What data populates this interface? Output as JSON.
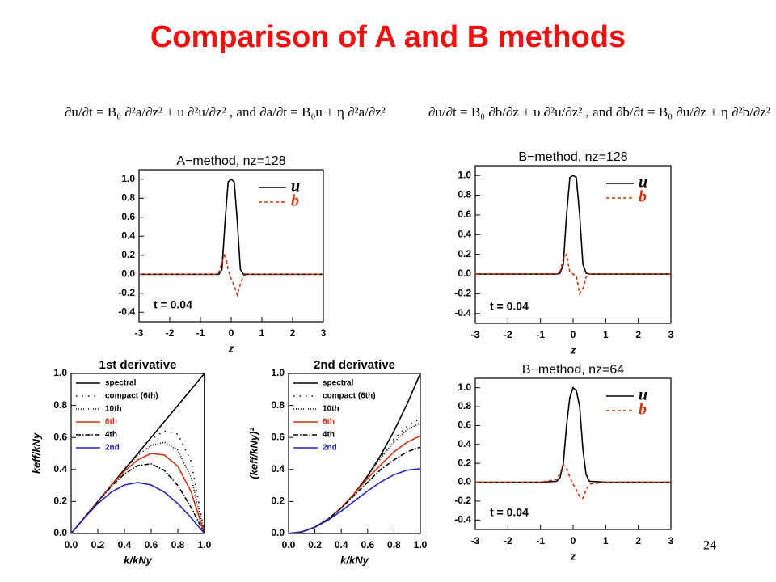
{
  "title": "Comparison of A and B methods",
  "equations": [
    "∂u/∂t = B₀ ∂²a/∂z² + υ ∂²u/∂z² ,   and   ∂a/∂t = B₀u + η ∂²a/∂z²",
    "∂u/∂t = B₀ ∂b/∂z + υ ∂²u/∂z² ,   and   ∂b/∂t = B₀ ∂u/∂z + η ∂²b/∂z²"
  ],
  "page_number": "24",
  "chart_data": [
    {
      "type": "line",
      "title": "A−method, nz=128",
      "xlabel": "z",
      "annotation": "t = 0.04",
      "legend": "upper right",
      "xlim": [
        -3,
        3
      ],
      "xticks": [
        -3,
        -2,
        -1,
        0,
        1,
        2,
        3
      ],
      "ylim": [
        -0.5,
        1.1
      ],
      "yticks": [
        -0.4,
        -0.2,
        {
          "value": 0,
          "label": "0.0"
        },
        0.2,
        0.4,
        0.6,
        0.8,
        {
          "value": 1,
          "label": "1.0"
        }
      ],
      "x": [
        -3,
        -1,
        -0.5,
        -0.4,
        -0.3,
        -0.2,
        -0.1,
        0,
        0.1,
        0.2,
        0.3,
        0.4,
        0.5,
        1,
        3
      ],
      "series": [
        {
          "name": "u",
          "color": "#000000",
          "dash": "solid",
          "values": [
            0,
            0,
            0,
            0,
            0.05,
            0.55,
            0.97,
            1,
            0.97,
            0.55,
            0.05,
            0,
            0,
            0,
            0
          ]
        },
        {
          "name": "b",
          "color": "#cc3311",
          "dash": "dashed",
          "values": [
            0,
            0,
            0,
            0.02,
            0.12,
            0.22,
            0.05,
            -0.05,
            -0.12,
            -0.22,
            -0.1,
            -0.02,
            0,
            0,
            0
          ]
        }
      ]
    },
    {
      "type": "line",
      "title": "B−method, nz=128",
      "xlabel": "z",
      "annotation": "t = 0.04",
      "legend": "upper right",
      "xlim": [
        -3,
        3
      ],
      "xticks": [
        -3,
        -2,
        -1,
        0,
        1,
        2,
        3
      ],
      "ylim": [
        -0.5,
        1.1
      ],
      "yticks": [
        -0.4,
        -0.2,
        {
          "value": 0,
          "label": "0.0"
        },
        0.2,
        0.4,
        0.6,
        0.8,
        {
          "value": 1,
          "label": "1.0"
        }
      ],
      "x": [
        -3,
        -1,
        -0.5,
        -0.4,
        -0.3,
        -0.2,
        -0.1,
        0,
        0.1,
        0.2,
        0.3,
        0.4,
        0.5,
        1,
        3
      ],
      "series": [
        {
          "name": "u",
          "color": "#000000",
          "dash": "solid",
          "values": [
            0,
            0,
            0,
            0.01,
            0.1,
            0.6,
            0.98,
            1,
            0.98,
            0.6,
            0.1,
            0.01,
            0,
            0,
            0
          ]
        },
        {
          "name": "b",
          "color": "#cc3311",
          "dash": "dashed",
          "values": [
            0,
            0,
            0,
            0.03,
            0.15,
            0.2,
            0.02,
            0,
            -0.02,
            -0.2,
            -0.15,
            -0.03,
            0,
            0,
            0
          ]
        }
      ]
    },
    {
      "type": "line",
      "title": "B−method, nz=64",
      "xlabel": "z",
      "annotation": "t = 0.04",
      "legend": "upper right",
      "xlim": [
        -3,
        3
      ],
      "xticks": [
        -3,
        -2,
        -1,
        0,
        1,
        2,
        3
      ],
      "ylim": [
        -0.5,
        1.1
      ],
      "yticks": [
        -0.4,
        -0.2,
        {
          "value": 0,
          "label": "0.0"
        },
        0.2,
        0.4,
        0.6,
        0.8,
        {
          "value": 1,
          "label": "1.0"
        }
      ],
      "x": [
        -3,
        -1,
        -0.5,
        -0.4,
        -0.3,
        -0.2,
        -0.1,
        0,
        0.1,
        0.2,
        0.3,
        0.4,
        0.5,
        1,
        3
      ],
      "series": [
        {
          "name": "u",
          "color": "#000000",
          "dash": "solid",
          "values": [
            0,
            0,
            0.01,
            0.05,
            0.2,
            0.6,
            0.9,
            1,
            0.97,
            0.8,
            0.35,
            0.08,
            0.01,
            0,
            0
          ]
        },
        {
          "name": "b",
          "color": "#cc3311",
          "dash": "dashed",
          "values": [
            0,
            0,
            0.03,
            0.1,
            0.18,
            0.15,
            0.05,
            -0.02,
            -0.08,
            -0.15,
            -0.17,
            -0.08,
            -0.02,
            0,
            0
          ]
        }
      ]
    },
    {
      "type": "line",
      "title": "1st derivative",
      "xlabel": "k/kNy",
      "ylabel": "keff/kNy",
      "legend": "upper left",
      "xlim": [
        0,
        1
      ],
      "xticks": [
        {
          "value": 0,
          "label": "0.0"
        },
        0.2,
        0.4,
        0.6,
        0.8,
        {
          "value": 1,
          "label": "1.0"
        }
      ],
      "ylim": [
        0,
        1
      ],
      "yticks": [
        {
          "value": 0,
          "label": "0.0"
        },
        0.2,
        0.4,
        0.6,
        0.8,
        {
          "value": 1,
          "label": "1.0"
        }
      ],
      "x": [
        0,
        0.1,
        0.2,
        0.3,
        0.4,
        0.5,
        0.6,
        0.7,
        0.8,
        0.9,
        1
      ],
      "series": [
        {
          "name": "spectral",
          "color": "#000000",
          "dash": "solid",
          "x": [
            0,
            1,
            1
          ],
          "values": [
            0,
            1,
            0
          ]
        },
        {
          "name": "compact (6th)",
          "color": "#000000",
          "dash": "sparse",
          "values": [
            0,
            0.1,
            0.2,
            0.3,
            0.4,
            0.5,
            0.59,
            0.64,
            0.62,
            0.45,
            0
          ]
        },
        {
          "name": "10th",
          "color": "#000000",
          "dash": "dotted",
          "values": [
            0,
            0.1,
            0.2,
            0.3,
            0.4,
            0.49,
            0.55,
            0.57,
            0.52,
            0.35,
            0
          ]
        },
        {
          "name": "6th",
          "color": "#cc3311",
          "dash": "solid",
          "values": [
            0,
            0.1,
            0.2,
            0.3,
            0.39,
            0.46,
            0.5,
            0.49,
            0.42,
            0.26,
            0
          ]
        },
        {
          "name": "4th",
          "color": "#000000",
          "dash": "dashdot",
          "values": [
            0,
            0.1,
            0.199,
            0.293,
            0.372,
            0.424,
            0.435,
            0.394,
            0.3,
            0.162,
            0
          ]
        },
        {
          "name": "2nd",
          "color": "#2222bb",
          "dash": "solid",
          "values": [
            0,
            0.098,
            0.187,
            0.258,
            0.303,
            0.318,
            0.303,
            0.258,
            0.187,
            0.098,
            0
          ]
        }
      ]
    },
    {
      "type": "line",
      "title": "2nd derivative",
      "xlabel": "k/kNy",
      "ylabel": "(keff/kNy)²",
      "legend": "upper left",
      "xlim": [
        0,
        1
      ],
      "xticks": [
        {
          "value": 0,
          "label": "0.0"
        },
        0.2,
        0.4,
        0.6,
        0.8,
        {
          "value": 1,
          "label": "1.0"
        }
      ],
      "ylim": [
        0,
        1
      ],
      "yticks": [
        {
          "value": 0,
          "label": "0.0"
        },
        0.2,
        0.4,
        0.6,
        0.8,
        {
          "value": 1,
          "label": "1.0"
        }
      ],
      "x": [
        0,
        0.1,
        0.2,
        0.3,
        0.4,
        0.5,
        0.6,
        0.7,
        0.8,
        0.9,
        1
      ],
      "series": [
        {
          "name": "spectral",
          "color": "#000000",
          "dash": "solid",
          "values": [
            0,
            0.01,
            0.04,
            0.09,
            0.16,
            0.25,
            0.36,
            0.49,
            0.64,
            0.81,
            1
          ]
        },
        {
          "name": "compact (6th)",
          "color": "#000000",
          "dash": "sparse",
          "values": [
            0,
            0.01,
            0.04,
            0.09,
            0.16,
            0.25,
            0.36,
            0.48,
            0.59,
            0.67,
            0.72
          ]
        },
        {
          "name": "10th",
          "color": "#000000",
          "dash": "dotted",
          "values": [
            0,
            0.01,
            0.04,
            0.09,
            0.16,
            0.25,
            0.36,
            0.47,
            0.57,
            0.65,
            0.69
          ]
        },
        {
          "name": "6th",
          "color": "#cc3311",
          "dash": "solid",
          "values": [
            0,
            0.01,
            0.04,
            0.09,
            0.16,
            0.25,
            0.345,
            0.43,
            0.51,
            0.57,
            0.61
          ]
        },
        {
          "name": "4th",
          "color": "#000000",
          "dash": "dashdot",
          "values": [
            0,
            0.01,
            0.04,
            0.09,
            0.158,
            0.24,
            0.32,
            0.4,
            0.46,
            0.51,
            0.54
          ]
        },
        {
          "name": "2nd",
          "color": "#2222bb",
          "dash": "solid",
          "values": [
            0,
            0.0099,
            0.0387,
            0.0836,
            0.14,
            0.203,
            0.265,
            0.322,
            0.367,
            0.396,
            0.405
          ]
        }
      ]
    }
  ]
}
